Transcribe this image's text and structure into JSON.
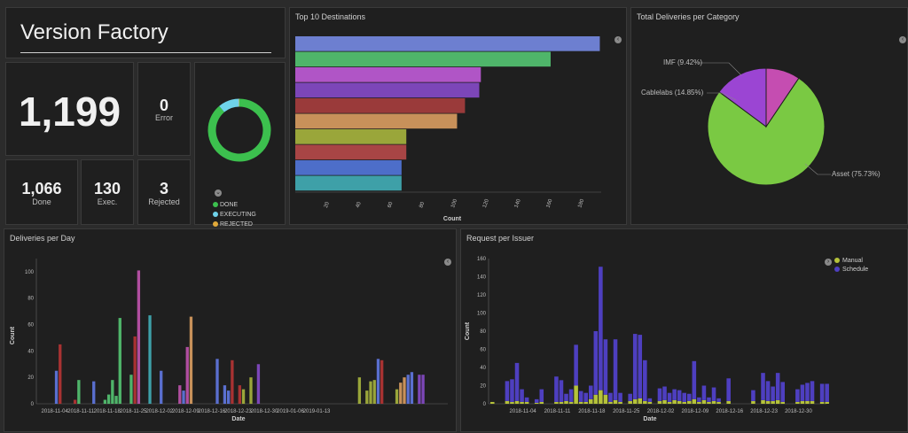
{
  "app": {
    "title": "Version Factory"
  },
  "stats": {
    "total": {
      "value": "1,199"
    },
    "error": {
      "value": "0",
      "label": "Error"
    },
    "done": {
      "value": "1,066",
      "label": "Done"
    },
    "exec": {
      "value": "130",
      "label": "Exec."
    },
    "rejected": {
      "value": "3",
      "label": "Rejected"
    }
  },
  "donut": {
    "legend": [
      {
        "label": "DONE",
        "color": "#3cc04e"
      },
      {
        "label": "EXECUTING",
        "color": "#6fd3ea"
      },
      {
        "label": "REJECTED",
        "color": "#e0a93a"
      }
    ],
    "values": [
      1066,
      130,
      3
    ]
  },
  "top10": {
    "title": "Top 10 Destinations",
    "xlabel": "Count",
    "ticks": [
      "20",
      "40",
      "60",
      "80",
      "100",
      "120",
      "140",
      "160",
      "180"
    ],
    "chart_data": {
      "type": "bar",
      "orientation": "horizontal",
      "values": [
        192,
        161,
        117,
        116,
        107,
        102,
        70,
        70,
        67,
        67
      ],
      "colors": [
        "#6d7fd0",
        "#4fb56a",
        "#b055c6",
        "#7c46b8",
        "#9a3a3a",
        "#c8915a",
        "#9aa63a",
        "#a84545",
        "#4d6ec9",
        "#3ea0a8"
      ],
      "xlim": [
        0,
        200
      ]
    }
  },
  "pie": {
    "title": "Total Deliveries per Category",
    "chart_data": {
      "type": "pie",
      "slices": [
        {
          "label": "Asset (75.73%)",
          "value": 75.73,
          "color": "#7ac943"
        },
        {
          "label": "Cablelabs (14.85%)",
          "value": 14.85,
          "color": "#9b45d3"
        },
        {
          "label": "IMF (9.42%)",
          "value": 9.42,
          "color": "#c54db1"
        }
      ]
    }
  },
  "perday": {
    "title": "Deliveries per Day",
    "ylabel": "Count",
    "xlabel": "Date",
    "yticks": [
      "0",
      "20",
      "40",
      "60",
      "80",
      "100"
    ],
    "xticks": [
      "2018-11-04",
      "2018-11-11",
      "2018-11-18",
      "2018-11-25",
      "2018-12-02",
      "2018-12-09",
      "2018-12-16",
      "2018-12-23",
      "2018-12-30",
      "2019-01-06",
      "2019-01-13"
    ],
    "chart_data": {
      "type": "bar",
      "ylim": [
        0,
        110
      ],
      "bars": [
        {
          "i": 4,
          "v": 25,
          "c": "#5a6fcf"
        },
        {
          "i": 5,
          "v": 45,
          "c": "#a83232"
        },
        {
          "i": 9,
          "v": 3,
          "c": "#a83232"
        },
        {
          "i": 10,
          "v": 18,
          "c": "#4fb56a"
        },
        {
          "i": 14,
          "v": 17,
          "c": "#5a6fcf"
        },
        {
          "i": 17,
          "v": 3,
          "c": "#4fb56a"
        },
        {
          "i": 18,
          "v": 7,
          "c": "#4fb56a"
        },
        {
          "i": 19,
          "v": 18,
          "c": "#4fb56a"
        },
        {
          "i": 20,
          "v": 6,
          "c": "#4fb56a"
        },
        {
          "i": 21,
          "v": 65,
          "c": "#4fb56a"
        },
        {
          "i": 24,
          "v": 22,
          "c": "#4fb56a"
        },
        {
          "i": 25,
          "v": 51,
          "c": "#a83232"
        },
        {
          "i": 26,
          "v": 101,
          "c": "#b04ea0"
        },
        {
          "i": 29,
          "v": 67,
          "c": "#3ea0a8"
        },
        {
          "i": 32,
          "v": 25,
          "c": "#5a6fcf"
        },
        {
          "i": 37,
          "v": 14,
          "c": "#b04ea0"
        },
        {
          "i": 38,
          "v": 10,
          "c": "#5a6fcf"
        },
        {
          "i": 39,
          "v": 43,
          "c": "#b04ea0"
        },
        {
          "i": 40,
          "v": 66,
          "c": "#c8915a"
        },
        {
          "i": 47,
          "v": 34,
          "c": "#5a6fcf"
        },
        {
          "i": 49,
          "v": 14,
          "c": "#5a6fcf"
        },
        {
          "i": 50,
          "v": 10,
          "c": "#5a6fcf"
        },
        {
          "i": 51,
          "v": 33,
          "c": "#a83232"
        },
        {
          "i": 53,
          "v": 14,
          "c": "#a83232"
        },
        {
          "i": 54,
          "v": 11,
          "c": "#9aa63a"
        },
        {
          "i": 56,
          "v": 20,
          "c": "#9aa63a"
        },
        {
          "i": 58,
          "v": 30,
          "c": "#7c46b8"
        },
        {
          "i": 85,
          "v": 20,
          "c": "#9aa63a"
        },
        {
          "i": 87,
          "v": 10,
          "c": "#9aa63a"
        },
        {
          "i": 88,
          "v": 17,
          "c": "#9aa63a"
        },
        {
          "i": 89,
          "v": 18,
          "c": "#9aa63a"
        },
        {
          "i": 90,
          "v": 34,
          "c": "#5a6fcf"
        },
        {
          "i": 91,
          "v": 33,
          "c": "#a83232"
        },
        {
          "i": 95,
          "v": 11,
          "c": "#9aa63a"
        },
        {
          "i": 96,
          "v": 16,
          "c": "#c8915a"
        },
        {
          "i": 97,
          "v": 20,
          "c": "#c8915a"
        },
        {
          "i": 98,
          "v": 22,
          "c": "#5a6fcf"
        },
        {
          "i": 99,
          "v": 24,
          "c": "#5a6fcf"
        },
        {
          "i": 101,
          "v": 22,
          "c": "#7c46b8"
        },
        {
          "i": 102,
          "v": 22,
          "c": "#7c46b8"
        }
      ]
    }
  },
  "issuer": {
    "title": "Request per Issuer",
    "ylabel": "Count",
    "xlabel": "Date",
    "legend": [
      {
        "label": "Manual",
        "color": "#b5c23a"
      },
      {
        "label": "Schedule",
        "color": "#4e3fc0"
      }
    ],
    "yticks": [
      "0",
      "20",
      "40",
      "60",
      "80",
      "100",
      "120",
      "140",
      "160"
    ],
    "xticks": [
      "2018-11-04",
      "2018-11-11",
      "2018-11-18",
      "2018-11-25",
      "2018-12-02",
      "2018-12-09",
      "2018-12-16",
      "2018-12-23",
      "2018-12-30"
    ],
    "chart_data": {
      "type": "bar",
      "stacked": true,
      "ylim": [
        0,
        160
      ],
      "bars": [
        {
          "i": 0,
          "m": 2,
          "s": 0
        },
        {
          "i": 3,
          "m": 3,
          "s": 22
        },
        {
          "i": 4,
          "m": 2,
          "s": 25
        },
        {
          "i": 5,
          "m": 3,
          "s": 42
        },
        {
          "i": 6,
          "m": 2,
          "s": 14
        },
        {
          "i": 7,
          "m": 2,
          "s": 5
        },
        {
          "i": 9,
          "m": 1,
          "s": 4
        },
        {
          "i": 10,
          "m": 2,
          "s": 14
        },
        {
          "i": 13,
          "m": 2,
          "s": 28
        },
        {
          "i": 14,
          "m": 2,
          "s": 24
        },
        {
          "i": 15,
          "m": 3,
          "s": 8
        },
        {
          "i": 16,
          "m": 2,
          "s": 14
        },
        {
          "i": 17,
          "m": 20,
          "s": 45
        },
        {
          "i": 18,
          "m": 2,
          "s": 12
        },
        {
          "i": 19,
          "m": 2,
          "s": 10
        },
        {
          "i": 20,
          "m": 5,
          "s": 15
        },
        {
          "i": 21,
          "m": 10,
          "s": 70
        },
        {
          "i": 22,
          "m": 15,
          "s": 136
        },
        {
          "i": 23,
          "m": 10,
          "s": 61
        },
        {
          "i": 24,
          "m": 2,
          "s": 10
        },
        {
          "i": 25,
          "m": 4,
          "s": 67
        },
        {
          "i": 26,
          "m": 2,
          "s": 10
        },
        {
          "i": 28,
          "m": 3,
          "s": 8
        },
        {
          "i": 29,
          "m": 5,
          "s": 72
        },
        {
          "i": 30,
          "m": 6,
          "s": 70
        },
        {
          "i": 31,
          "m": 3,
          "s": 45
        },
        {
          "i": 32,
          "m": 2,
          "s": 4
        },
        {
          "i": 34,
          "m": 3,
          "s": 14
        },
        {
          "i": 35,
          "m": 4,
          "s": 15
        },
        {
          "i": 36,
          "m": 2,
          "s": 10
        },
        {
          "i": 37,
          "m": 4,
          "s": 12
        },
        {
          "i": 38,
          "m": 3,
          "s": 12
        },
        {
          "i": 39,
          "m": 2,
          "s": 10
        },
        {
          "i": 40,
          "m": 3,
          "s": 8
        },
        {
          "i": 41,
          "m": 5,
          "s": 42
        },
        {
          "i": 42,
          "m": 2,
          "s": 5
        },
        {
          "i": 43,
          "m": 4,
          "s": 16
        },
        {
          "i": 44,
          "m": 2,
          "s": 5
        },
        {
          "i": 45,
          "m": 3,
          "s": 15
        },
        {
          "i": 46,
          "m": 2,
          "s": 4
        },
        {
          "i": 48,
          "m": 3,
          "s": 25
        },
        {
          "i": 53,
          "m": 3,
          "s": 12
        },
        {
          "i": 55,
          "m": 4,
          "s": 30
        },
        {
          "i": 56,
          "m": 3,
          "s": 22
        },
        {
          "i": 57,
          "m": 3,
          "s": 16
        },
        {
          "i": 58,
          "m": 4,
          "s": 30
        },
        {
          "i": 59,
          "m": 2,
          "s": 22
        },
        {
          "i": 62,
          "m": 2,
          "s": 14
        },
        {
          "i": 63,
          "m": 3,
          "s": 18
        },
        {
          "i": 64,
          "m": 3,
          "s": 20
        },
        {
          "i": 65,
          "m": 3,
          "s": 22
        },
        {
          "i": 67,
          "m": 2,
          "s": 20
        },
        {
          "i": 68,
          "m": 2,
          "s": 20
        }
      ]
    }
  }
}
